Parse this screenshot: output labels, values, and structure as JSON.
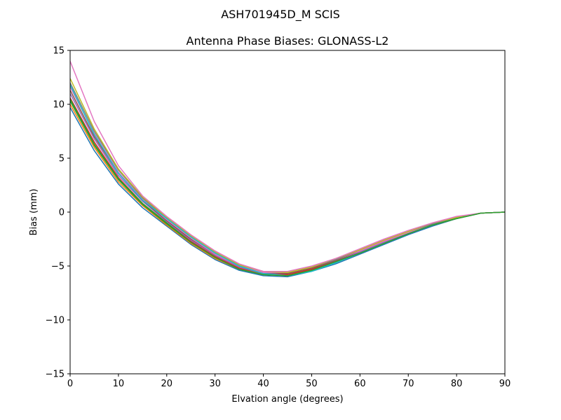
{
  "figure": {
    "suptitle": "ASH701945D_M    SCIS"
  },
  "chart_data": {
    "type": "line",
    "title": "Antenna Phase Biases: GLONASS-L2",
    "xlabel": "Elvation angle (degrees)",
    "ylabel": "Bias (mm)",
    "xlim": [
      0,
      90
    ],
    "ylim": [
      -15,
      15
    ],
    "grid": false,
    "xticks": [
      0,
      10,
      20,
      30,
      40,
      50,
      60,
      70,
      80,
      90
    ],
    "yticks": [
      -15,
      -10,
      -5,
      0,
      5,
      10,
      15
    ],
    "xtick_labels": [
      "0",
      "10",
      "20",
      "30",
      "40",
      "50",
      "60",
      "70",
      "80",
      "90"
    ],
    "ytick_labels": [
      "−15",
      "−10",
      "−5",
      "0",
      "5",
      "10",
      "15"
    ],
    "x": [
      0,
      5,
      10,
      15,
      20,
      25,
      30,
      35,
      40,
      45,
      50,
      55,
      60,
      65,
      70,
      75,
      80,
      85,
      90
    ],
    "series": [
      {
        "color": "#1f77b4",
        "values": [
          9.7,
          5.7,
          2.6,
          0.4,
          -1.3,
          -3.0,
          -4.4,
          -5.4,
          -5.9,
          -6.0,
          -5.5,
          -4.8,
          -3.9,
          -3.0,
          -2.1,
          -1.3,
          -0.6,
          -0.1,
          0.0
        ]
      },
      {
        "color": "#ff7f0e",
        "values": [
          10.0,
          6.0,
          2.8,
          0.6,
          -1.2,
          -2.9,
          -4.3,
          -5.3,
          -5.8,
          -5.9,
          -5.4,
          -4.7,
          -3.8,
          -2.9,
          -2.0,
          -1.2,
          -0.6,
          -0.1,
          0.0
        ]
      },
      {
        "color": "#2ca02c",
        "values": [
          10.3,
          6.2,
          3.0,
          0.7,
          -1.1,
          -2.8,
          -4.2,
          -5.3,
          -5.8,
          -5.8,
          -5.3,
          -4.6,
          -3.8,
          -2.9,
          -2.0,
          -1.2,
          -0.6,
          -0.1,
          0.0
        ]
      },
      {
        "color": "#d62728",
        "values": [
          10.6,
          6.5,
          3.2,
          0.8,
          -1.0,
          -2.7,
          -4.1,
          -5.2,
          -5.7,
          -5.8,
          -5.3,
          -4.6,
          -3.7,
          -2.8,
          -2.0,
          -1.2,
          -0.6,
          -0.1,
          0.0
        ]
      },
      {
        "color": "#9467bd",
        "values": [
          11.0,
          6.8,
          3.4,
          1.0,
          -0.9,
          -2.6,
          -4.0,
          -5.1,
          -5.7,
          -5.7,
          -5.2,
          -4.5,
          -3.7,
          -2.8,
          -1.9,
          -1.2,
          -0.5,
          -0.1,
          0.0
        ]
      },
      {
        "color": "#8c564b",
        "values": [
          11.3,
          7.0,
          3.6,
          1.1,
          -0.8,
          -2.5,
          -3.9,
          -5.0,
          -5.6,
          -5.7,
          -5.2,
          -4.5,
          -3.6,
          -2.7,
          -1.9,
          -1.1,
          -0.5,
          -0.1,
          0.0
        ]
      },
      {
        "color": "#e377c2",
        "values": [
          11.6,
          7.3,
          3.7,
          1.2,
          -0.7,
          -2.4,
          -3.9,
          -5.0,
          -5.6,
          -5.6,
          -5.1,
          -4.4,
          -3.6,
          -2.7,
          -1.9,
          -1.1,
          -0.5,
          -0.1,
          0.0
        ]
      },
      {
        "color": "#7f7f7f",
        "values": [
          12.0,
          7.5,
          3.9,
          1.3,
          -0.6,
          -2.3,
          -3.8,
          -4.9,
          -5.5,
          -5.6,
          -5.1,
          -4.4,
          -3.5,
          -2.6,
          -1.8,
          -1.1,
          -0.5,
          -0.1,
          0.0
        ]
      },
      {
        "color": "#bcbd22",
        "values": [
          12.4,
          7.7,
          4.0,
          1.4,
          -0.5,
          -2.2,
          -3.7,
          -4.9,
          -5.5,
          -5.6,
          -5.1,
          -4.3,
          -3.5,
          -2.6,
          -1.8,
          -1.0,
          -0.5,
          -0.1,
          0.0
        ]
      },
      {
        "color": "#17becf",
        "values": [
          11.8,
          7.2,
          3.6,
          1.1,
          -0.6,
          -2.3,
          -3.8,
          -5.0,
          -5.7,
          -5.9,
          -5.5,
          -4.7,
          -3.8,
          -2.9,
          -2.0,
          -1.2,
          -0.6,
          -0.1,
          0.0
        ]
      },
      {
        "color": "#e377c2",
        "values": [
          14.0,
          8.4,
          4.3,
          1.5,
          -0.4,
          -2.1,
          -3.6,
          -4.8,
          -5.5,
          -5.5,
          -5.0,
          -4.3,
          -3.4,
          -2.5,
          -1.7,
          -1.0,
          -0.4,
          -0.1,
          0.0
        ]
      },
      {
        "color": "#2ca02c",
        "values": [
          10.5,
          6.3,
          3.1,
          0.8,
          -1.0,
          -2.8,
          -4.2,
          -5.3,
          -5.8,
          -5.9,
          -5.4,
          -4.6,
          -3.8,
          -2.9,
          -2.0,
          -1.2,
          -0.6,
          -0.1,
          0.0
        ]
      }
    ]
  }
}
